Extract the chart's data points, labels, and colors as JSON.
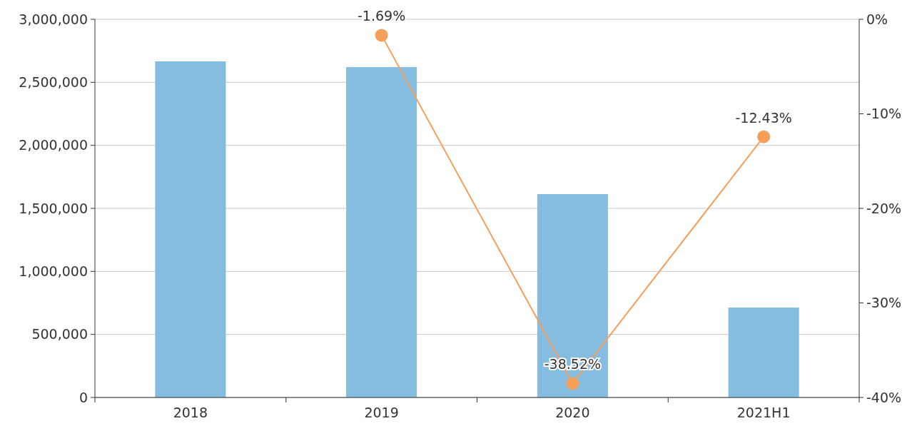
{
  "chart_data": {
    "type": "bar",
    "categories": [
      "2018",
      "2019",
      "2020",
      "2021H1"
    ],
    "series": [
      {
        "color": "#85bde0",
        "values": [
          2666000,
          2621000,
          1613000,
          713000
        ]
      },
      {
        "type": "line",
        "axis": "y2",
        "color": "#f5a05a",
        "values": [
          null,
          -1.69,
          -38.52,
          -12.43
        ],
        "value_labels": [
          null,
          "-1.69%",
          "-38.52%",
          "-12.43%"
        ]
      }
    ],
    "ylim": [
      0,
      3000000
    ],
    "yticks": [
      {
        "value": 0,
        "label": "0"
      },
      {
        "value": 500000,
        "label": "500,000"
      },
      {
        "value": 1000000,
        "label": "1,000,000"
      },
      {
        "value": 1500000,
        "label": "1,500,000"
      },
      {
        "value": 2000000,
        "label": "2,000,000"
      },
      {
        "value": 2500000,
        "label": "2,500,000"
      },
      {
        "value": 3000000,
        "label": "3,000,000"
      }
    ],
    "y2lim": [
      -40,
      0
    ],
    "y2ticks": [
      {
        "value": -40,
        "label": "-40%"
      },
      {
        "value": -30,
        "label": "-30%"
      },
      {
        "value": -20,
        "label": "-20%"
      },
      {
        "value": -10,
        "label": "-10%"
      },
      {
        "value": 0,
        "label": "0%"
      }
    ],
    "grid": "y",
    "marker": "circle"
  }
}
